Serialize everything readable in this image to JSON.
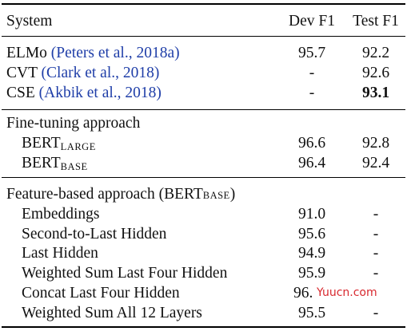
{
  "header": {
    "system": "System",
    "dev": "Dev F1",
    "test": "Test F1"
  },
  "prior_rows": [
    {
      "name": "ELMo",
      "cite": "(Peters et al., 2018a)",
      "dev": "95.7",
      "test": "92.2"
    },
    {
      "name": "CVT",
      "cite": "(Clark et al., 2018)",
      "dev": "-",
      "test": "92.6"
    },
    {
      "name": "CSE",
      "cite": "(Akbik et al., 2018)",
      "dev": "-",
      "test": "93.1"
    }
  ],
  "finetune": {
    "title": "Fine-tuning approach",
    "rows": [
      {
        "name": "BERT",
        "sub": "LARGE",
        "dev": "96.6",
        "test": "92.8"
      },
      {
        "name": "BERT",
        "sub": "BASE",
        "dev": "96.4",
        "test": "92.4"
      }
    ]
  },
  "feature": {
    "title_pre": "Feature-based approach (BERT",
    "title_sub": "BASE",
    "title_post": ")",
    "rows": [
      {
        "name": "Embeddings",
        "dev": "91.0",
        "test": "-"
      },
      {
        "name": "Second-to-Last Hidden",
        "dev": "95.6",
        "test": "-"
      },
      {
        "name": "Last Hidden",
        "dev": "94.9",
        "test": "-"
      },
      {
        "name": "Weighted Sum Last Four Hidden",
        "dev": "95.9",
        "test": "-"
      },
      {
        "name": "Concat Last Four Hidden",
        "dev": "96.",
        "test": ""
      },
      {
        "name": "Weighted Sum All 12 Layers",
        "dev": "95.5",
        "test": "-"
      }
    ]
  },
  "watermark": "Yuucn.com",
  "colors": {
    "citation": "#1f3ea8",
    "watermark": "#d8282e"
  }
}
